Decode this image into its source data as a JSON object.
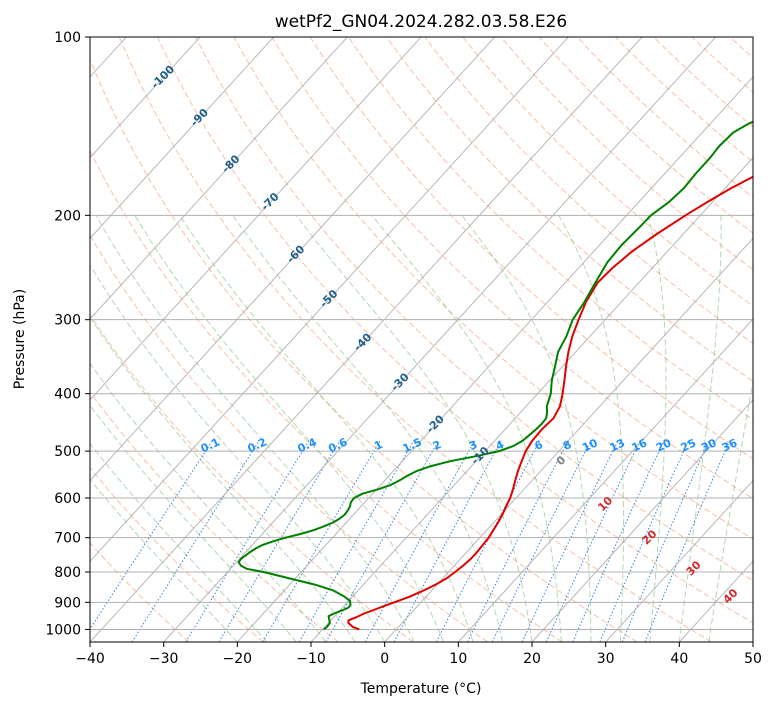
{
  "chart_data": {
    "type": "line",
    "title": "wetPf2_GN04.2024.282.03.58.E26",
    "xlabel": "Temperature (°C)",
    "ylabel": "Pressure (hPa)",
    "xlim": [
      -40,
      50
    ],
    "ylim": [
      1050,
      100
    ],
    "y_scale": "log",
    "x_ticks": [
      -40,
      -30,
      -20,
      -10,
      0,
      10,
      20,
      30,
      40,
      50
    ],
    "x_tick_labels": [
      "−40",
      "−30",
      "−20",
      "−10",
      "0",
      "10",
      "20",
      "30",
      "40",
      "50"
    ],
    "y_ticks": [
      100,
      200,
      300,
      400,
      500,
      600,
      700,
      800,
      900,
      1000
    ],
    "y_tick_labels": [
      "100",
      "200",
      "300",
      "400",
      "500",
      "600",
      "700",
      "800",
      "900",
      "1000"
    ],
    "grid": true,
    "series": [
      {
        "color": "#e00000",
        "points": [
          [
            1000,
            -5.0
          ],
          [
            990,
            -6.2
          ],
          [
            975,
            -7.3
          ],
          [
            965,
            -7.6
          ],
          [
            955,
            -7.0
          ],
          [
            940,
            -6.3
          ],
          [
            920,
            -5.0
          ],
          [
            900,
            -3.6
          ],
          [
            880,
            -2.2
          ],
          [
            860,
            -1.1
          ],
          [
            840,
            -0.2
          ],
          [
            820,
            0.5
          ],
          [
            800,
            0.9
          ],
          [
            780,
            1.2
          ],
          [
            760,
            1.4
          ],
          [
            740,
            1.4
          ],
          [
            720,
            1.3
          ],
          [
            700,
            1.2
          ],
          [
            680,
            0.9
          ],
          [
            660,
            0.6
          ],
          [
            640,
            0.2
          ],
          [
            620,
            -0.3
          ],
          [
            600,
            -0.8
          ],
          [
            580,
            -1.5
          ],
          [
            560,
            -2.3
          ],
          [
            540,
            -3.1
          ],
          [
            520,
            -3.8
          ],
          [
            500,
            -4.5
          ],
          [
            480,
            -4.9
          ],
          [
            460,
            -5.0
          ],
          [
            440,
            -4.8
          ],
          [
            420,
            -5.4
          ],
          [
            400,
            -6.6
          ],
          [
            380,
            -8.0
          ],
          [
            360,
            -9.5
          ],
          [
            340,
            -11.0
          ],
          [
            320,
            -12.4
          ],
          [
            300,
            -13.6
          ],
          [
            280,
            -14.8
          ],
          [
            260,
            -15.6
          ],
          [
            245,
            -15.4
          ],
          [
            230,
            -14.8
          ],
          [
            215,
            -13.6
          ],
          [
            200,
            -12.0
          ],
          [
            190,
            -10.7
          ],
          [
            180,
            -9.2
          ],
          [
            170,
            -7.2
          ],
          [
            160,
            -4.6
          ],
          [
            150,
            -1.7
          ],
          [
            140,
            1.7
          ],
          [
            130,
            5.5
          ],
          [
            120,
            9.4
          ],
          [
            110,
            14.3
          ],
          [
            100,
            19.4
          ]
        ]
      },
      {
        "color": "#008000",
        "points": [
          [
            1000,
            -9.8
          ],
          [
            990,
            -9.7
          ],
          [
            975,
            -9.8
          ],
          [
            960,
            -10.4
          ],
          [
            950,
            -10.8
          ],
          [
            940,
            -10.4
          ],
          [
            930,
            -9.8
          ],
          [
            920,
            -9.2
          ],
          [
            910,
            -9.2
          ],
          [
            895,
            -9.8
          ],
          [
            880,
            -11.1
          ],
          [
            860,
            -13.3
          ],
          [
            840,
            -16.6
          ],
          [
            820,
            -20.8
          ],
          [
            800,
            -25.1
          ],
          [
            790,
            -27.8
          ],
          [
            780,
            -29.0
          ],
          [
            770,
            -29.7
          ],
          [
            760,
            -29.8
          ],
          [
            750,
            -29.6
          ],
          [
            740,
            -29.4
          ],
          [
            730,
            -29.1
          ],
          [
            720,
            -28.6
          ],
          [
            710,
            -27.6
          ],
          [
            700,
            -26.4
          ],
          [
            690,
            -24.8
          ],
          [
            680,
            -23.5
          ],
          [
            670,
            -22.6
          ],
          [
            660,
            -21.8
          ],
          [
            650,
            -21.4
          ],
          [
            640,
            -21.2
          ],
          [
            630,
            -21.3
          ],
          [
            620,
            -21.5
          ],
          [
            610,
            -21.9
          ],
          [
            600,
            -22.0
          ],
          [
            590,
            -21.4
          ],
          [
            580,
            -19.8
          ],
          [
            570,
            -18.6
          ],
          [
            560,
            -18.0
          ],
          [
            550,
            -17.5
          ],
          [
            540,
            -16.8
          ],
          [
            530,
            -15.5
          ],
          [
            520,
            -13.5
          ],
          [
            510,
            -10.6
          ],
          [
            500,
            -8.1
          ],
          [
            490,
            -6.8
          ],
          [
            480,
            -6.2
          ],
          [
            470,
            -6.0
          ],
          [
            460,
            -5.8
          ],
          [
            450,
            -5.7
          ],
          [
            440,
            -5.8
          ],
          [
            430,
            -6.4
          ],
          [
            420,
            -7.2
          ],
          [
            400,
            -8.2
          ],
          [
            380,
            -9.7
          ],
          [
            360,
            -11.0
          ],
          [
            340,
            -12.4
          ],
          [
            320,
            -13.2
          ],
          [
            300,
            -14.4
          ],
          [
            280,
            -15.0
          ],
          [
            260,
            -15.9
          ],
          [
            240,
            -16.8
          ],
          [
            225,
            -17.0
          ],
          [
            210,
            -16.8
          ],
          [
            200,
            -16.7
          ],
          [
            190,
            -15.9
          ],
          [
            180,
            -15.6
          ],
          [
            170,
            -15.8
          ],
          [
            160,
            -15.8
          ],
          [
            153,
            -16.0
          ],
          [
            145,
            -15.8
          ],
          [
            140,
            -14.8
          ],
          [
            135,
            -13.0
          ],
          [
            130,
            -11.0
          ],
          [
            125,
            -9.0
          ],
          [
            120,
            -7.2
          ],
          [
            115,
            -5.6
          ],
          [
            110,
            -4.3
          ],
          [
            105,
            -3.2
          ],
          [
            100,
            -2.2
          ]
        ]
      }
    ],
    "dry_adiabat_labels": [
      "-100",
      "-90",
      "-80",
      "-70",
      "-60",
      "-50",
      "-40",
      "-30",
      "-20",
      "-10"
    ],
    "mixing_ratio_labels": [
      "0.1",
      "0.2",
      "0.4",
      "0.6",
      "1",
      "1.5",
      "2",
      "3",
      "4",
      "6",
      "8",
      "10",
      "13",
      "16",
      "20",
      "25",
      "30",
      "36"
    ],
    "moist_adiabat_labels": [
      "0",
      "10",
      "20",
      "30",
      "40"
    ],
    "colors": {
      "temperature": "#e00000",
      "dewpoint": "#008000",
      "dry_adiabat": "#f4a582",
      "moist_adiabat": "#7fbf7b",
      "mixing_ratio": "#1f78d8",
      "isotherm": "#b0b0b0",
      "dry_adiabat_label": "#1f5f8b",
      "mixing_ratio_label": "#1e90ff",
      "moist_adiabat_label": "#d62728",
      "moist_adiabat_zero_label": "#808080",
      "grid": "#b0b0b0"
    }
  }
}
